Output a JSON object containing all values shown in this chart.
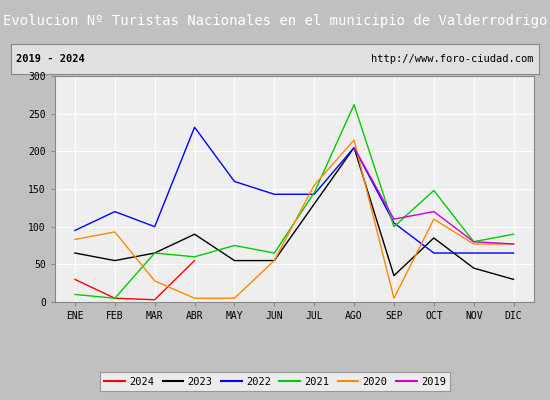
{
  "title": "Evolucion Nº Turistas Nacionales en el municipio de Valderrodrigo",
  "subtitle_left": "2019 - 2024",
  "subtitle_right": "http://www.foro-ciudad.com",
  "months": [
    "ENE",
    "FEB",
    "MAR",
    "ABR",
    "MAY",
    "JUN",
    "JUL",
    "AGO",
    "SEP",
    "OCT",
    "NOV",
    "DIC"
  ],
  "ylim": [
    0,
    300
  ],
  "yticks": [
    0,
    50,
    100,
    150,
    200,
    250,
    300
  ],
  "series": {
    "2024": {
      "color": "#ff0000",
      "values": [
        30,
        5,
        3,
        55,
        null,
        null,
        null,
        null,
        null,
        null,
        null,
        null
      ]
    },
    "2023": {
      "color": "#000000",
      "values": [
        65,
        55,
        65,
        90,
        55,
        55,
        130,
        205,
        35,
        85,
        45,
        30
      ]
    },
    "2022": {
      "color": "#0000ff",
      "values": [
        95,
        120,
        100,
        232,
        160,
        143,
        143,
        205,
        105,
        65,
        65,
        65
      ]
    },
    "2021": {
      "color": "#00cc00",
      "values": [
        10,
        5,
        65,
        60,
        75,
        65,
        145,
        262,
        100,
        148,
        80,
        90
      ]
    },
    "2020": {
      "color": "#ff8800",
      "values": [
        83,
        93,
        28,
        5,
        5,
        55,
        155,
        215,
        5,
        110,
        77,
        77
      ]
    },
    "2019": {
      "color": "#cc00cc",
      "values": [
        null,
        null,
        null,
        null,
        null,
        null,
        null,
        205,
        110,
        120,
        80,
        77
      ]
    }
  },
  "title_bg_color": "#4472c4",
  "title_text_color": "#ffffff",
  "subtitle_bg_color": "#e0e0e0",
  "plot_bg_color": "#eeeeee",
  "grid_color": "#ffffff",
  "fig_bg_color": "#c0c0c0",
  "border_color": "#888888",
  "title_fontsize": 10,
  "subtitle_fontsize": 7.5,
  "axis_fontsize": 7,
  "legend_fontsize": 7.5
}
